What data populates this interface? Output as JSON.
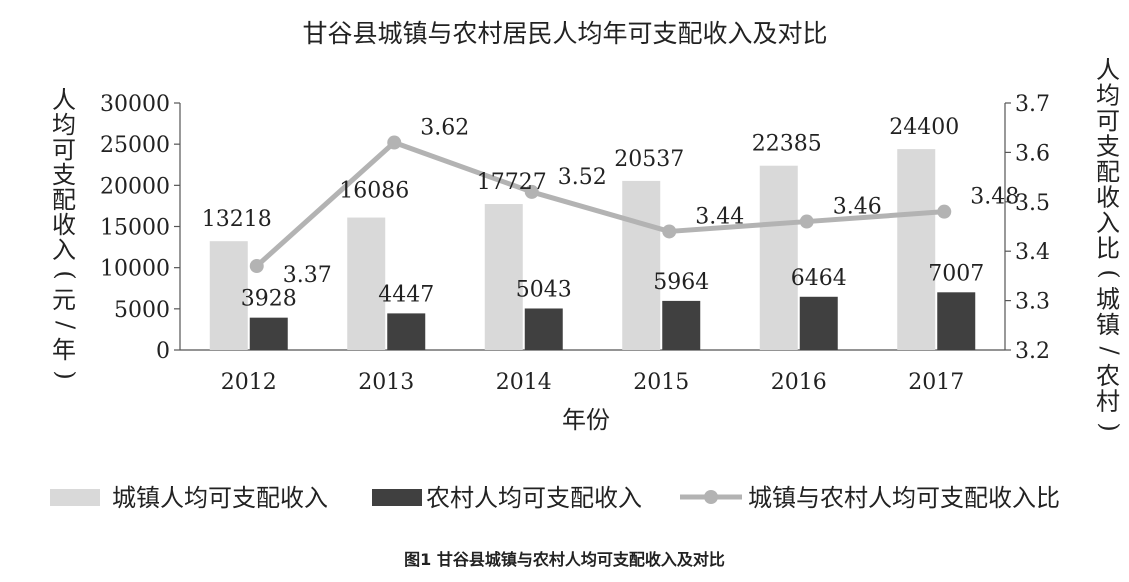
{
  "chart_data": {
    "type": "bar",
    "title": "甘谷县城镇与农村居民人均年可支配收入及对比",
    "xlabel": "年份",
    "ylabel_left": "人均可支配收入(元/年)",
    "ylabel_right": "人均可支配收入比(城镇/农村)",
    "categories": [
      "2012",
      "2013",
      "2014",
      "2015",
      "2016",
      "2017"
    ],
    "y_left": {
      "min": 0,
      "max": 30000,
      "ticks": [
        "0",
        "5000",
        "10000",
        "15000",
        "20000",
        "25000",
        "30000"
      ]
    },
    "y_right": {
      "min": 3.2,
      "max": 3.7,
      "ticks": [
        "3.2",
        "3.3",
        "3.4",
        "3.5",
        "3.6",
        "3.7"
      ]
    },
    "series": [
      {
        "name": "城镇人均可支配收入",
        "type": "bar",
        "axis": "left",
        "color": "#d9d9d9",
        "values": [
          13218,
          16086,
          17727,
          20537,
          22385,
          24400
        ],
        "labels": [
          "13218",
          "16086",
          "17727",
          "20537",
          "22385",
          "24400"
        ]
      },
      {
        "name": "农村人均可支配收入",
        "type": "bar",
        "axis": "left",
        "color": "#404040",
        "values": [
          3928,
          4447,
          5043,
          5964,
          6464,
          7007
        ],
        "labels": [
          "3928",
          "4447",
          "5043",
          "5964",
          "6464",
          "7007"
        ]
      },
      {
        "name": "城镇与农村人均可支配收入比",
        "type": "line",
        "axis": "right",
        "color": "#b3b3b3",
        "values": [
          3.37,
          3.62,
          3.52,
          3.44,
          3.46,
          3.48
        ],
        "labels": [
          "3.37",
          "3.62",
          "3.52",
          "3.44",
          "3.46",
          "3.48"
        ]
      }
    ],
    "legend_position": "bottom",
    "grid": false,
    "caption": "图1 甘谷县城镇与农村人均可支配收入及对比"
  }
}
